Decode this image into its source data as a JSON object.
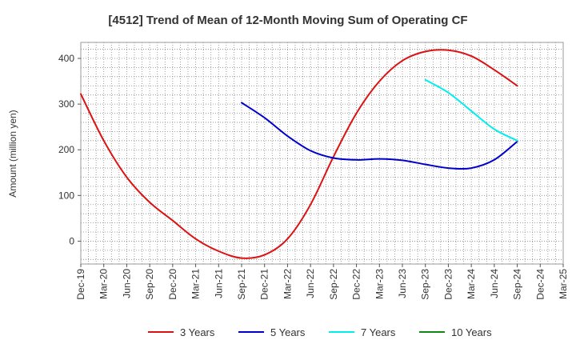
{
  "chart_data": {
    "type": "line",
    "title": "[4512]  Trend of Mean of 12-Month Moving Sum of Operating CF",
    "xlabel": "",
    "ylabel": "Amount (million yen)",
    "ylim": [
      -50,
      435
    ],
    "yticks": [
      0,
      100,
      200,
      300,
      400
    ],
    "x_range_months": [
      "Dec-19",
      "Mar-25"
    ],
    "xticks": [
      "Dec-19",
      "Mar-20",
      "Jun-20",
      "Sep-20",
      "Dec-20",
      "Mar-21",
      "Jun-21",
      "Sep-21",
      "Dec-21",
      "Mar-22",
      "Jun-22",
      "Sep-22",
      "Dec-22",
      "Mar-23",
      "Jun-23",
      "Sep-23",
      "Dec-23",
      "Mar-24",
      "Jun-24",
      "Sep-24",
      "Dec-24",
      "Mar-25"
    ],
    "grid": true,
    "legend_position": "bottom",
    "series": [
      {
        "name": "3 Years",
        "color": "#dd1111",
        "points": [
          [
            "Dec-19",
            322
          ],
          [
            "Mar-20",
            220
          ],
          [
            "Jun-20",
            140
          ],
          [
            "Sep-20",
            85
          ],
          [
            "Dec-20",
            45
          ],
          [
            "Mar-21",
            5
          ],
          [
            "Jun-21",
            -22
          ],
          [
            "Sep-21",
            -37
          ],
          [
            "Dec-21",
            -30
          ],
          [
            "Mar-22",
            5
          ],
          [
            "Jun-22",
            80
          ],
          [
            "Sep-22",
            185
          ],
          [
            "Dec-22",
            280
          ],
          [
            "Mar-23",
            350
          ],
          [
            "Jun-23",
            395
          ],
          [
            "Sep-23",
            415
          ],
          [
            "Dec-23",
            418
          ],
          [
            "Mar-24",
            405
          ],
          [
            "Jun-24",
            375
          ],
          [
            "Sep-24",
            340
          ]
        ]
      },
      {
        "name": "5 Years",
        "color": "#0000cc",
        "points": [
          [
            "Sep-21",
            303
          ],
          [
            "Dec-21",
            270
          ],
          [
            "Mar-22",
            230
          ],
          [
            "Jun-22",
            198
          ],
          [
            "Sep-22",
            182
          ],
          [
            "Dec-22",
            178
          ],
          [
            "Mar-23",
            180
          ],
          [
            "Jun-23",
            177
          ],
          [
            "Sep-23",
            168
          ],
          [
            "Dec-23",
            160
          ],
          [
            "Mar-24",
            160
          ],
          [
            "Jun-24",
            178
          ],
          [
            "Sep-24",
            218
          ]
        ]
      },
      {
        "name": "7 Years",
        "color": "#00eeee",
        "points": [
          [
            "Sep-23",
            353
          ],
          [
            "Dec-23",
            325
          ],
          [
            "Mar-24",
            285
          ],
          [
            "Jun-24",
            245
          ],
          [
            "Sep-24",
            220
          ]
        ]
      },
      {
        "name": "10 Years",
        "color": "#118811",
        "points": []
      }
    ]
  }
}
